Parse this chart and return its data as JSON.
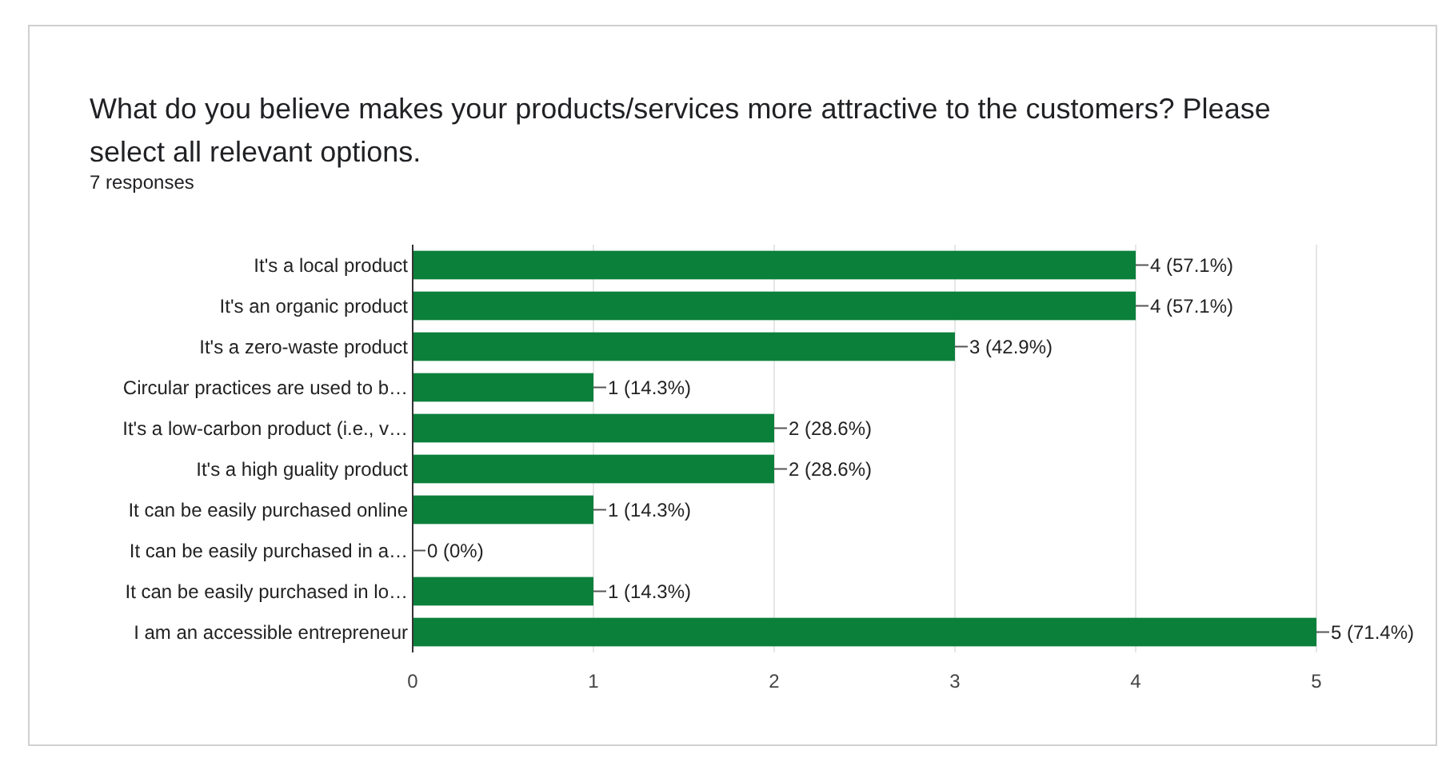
{
  "chart_data": {
    "type": "bar",
    "orientation": "horizontal",
    "title": "What do you believe makes your products/services more attractive to the customers? Please select all relevant options.",
    "subtitle": "7 responses",
    "categories": [
      "It's a local product",
      "It's an organic product",
      "It's a zero-waste product",
      "Circular practices are used to b…",
      "It's a low-carbon product (i.e., v…",
      "It's a high guality product",
      "It can be easily purchased online",
      "It can be easily purchased in a…",
      "It can be easily purchased in lo…",
      "I am an accessible entrepreneur"
    ],
    "values": [
      4,
      4,
      3,
      1,
      2,
      2,
      1,
      0,
      1,
      5
    ],
    "value_labels": [
      "4 (57.1%)",
      "4 (57.1%)",
      "3 (42.9%)",
      "1 (14.3%)",
      "2 (28.6%)",
      "2 (28.6%)",
      "1 (14.3%)",
      "0 (0%)",
      "1 (14.3%)",
      "5 (71.4%)"
    ],
    "color": "#0b803b",
    "xlim": [
      0,
      5
    ],
    "xticks": [
      0,
      1,
      2,
      3,
      4,
      5
    ],
    "grid": "x"
  }
}
